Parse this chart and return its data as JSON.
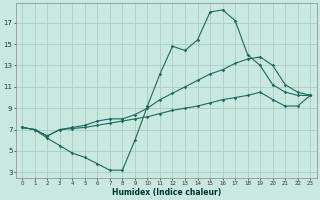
{
  "xlabel": "Humidex (Indice chaleur)",
  "bg_color": "#c8e8e0",
  "grid_color": "#a8ccc4",
  "line_color": "#1a6b60",
  "line1_x": [
    0,
    1,
    2,
    3,
    4,
    5,
    6,
    7,
    8,
    9,
    10,
    11,
    12,
    13,
    14,
    15,
    16,
    17,
    18,
    19,
    20,
    21,
    22,
    23
  ],
  "line1_y": [
    7.2,
    7.0,
    6.2,
    5.5,
    4.8,
    4.4,
    3.8,
    3.2,
    3.2,
    6.0,
    9.2,
    12.2,
    14.8,
    14.4,
    15.4,
    18.0,
    18.2,
    17.2,
    14.0,
    13.0,
    11.2,
    10.5,
    10.2,
    10.2
  ],
  "line2_x": [
    0,
    1,
    2,
    3,
    4,
    5,
    6,
    7,
    8,
    9,
    10,
    11,
    12,
    13,
    14,
    15,
    16,
    17,
    18,
    19,
    20,
    21,
    22,
    23
  ],
  "line2_y": [
    7.2,
    7.0,
    6.4,
    7.0,
    7.2,
    7.4,
    7.8,
    8.0,
    8.0,
    8.4,
    9.0,
    9.8,
    10.4,
    11.0,
    11.6,
    12.2,
    12.6,
    13.2,
    13.6,
    13.8,
    13.0,
    11.2,
    10.5,
    10.2
  ],
  "line3_x": [
    0,
    1,
    2,
    3,
    4,
    5,
    6,
    7,
    8,
    9,
    10,
    11,
    12,
    13,
    14,
    15,
    16,
    17,
    18,
    19,
    20,
    21,
    22,
    23
  ],
  "line3_y": [
    7.2,
    7.0,
    6.4,
    7.0,
    7.1,
    7.2,
    7.4,
    7.6,
    7.8,
    8.0,
    8.2,
    8.5,
    8.8,
    9.0,
    9.2,
    9.5,
    9.8,
    10.0,
    10.2,
    10.5,
    9.8,
    9.2,
    9.2,
    10.2
  ],
  "xlim": [
    -0.5,
    23.5
  ],
  "ylim": [
    2.5,
    18.8
  ],
  "xticks": [
    0,
    1,
    2,
    3,
    4,
    5,
    6,
    7,
    8,
    9,
    10,
    11,
    12,
    13,
    14,
    15,
    16,
    17,
    18,
    19,
    20,
    21,
    22,
    23
  ],
  "yticks": [
    3,
    5,
    7,
    9,
    11,
    13,
    15,
    17
  ],
  "xlabel_fontsize": 5.5,
  "tick_fontsize_x": 4.0,
  "tick_fontsize_y": 5.0
}
